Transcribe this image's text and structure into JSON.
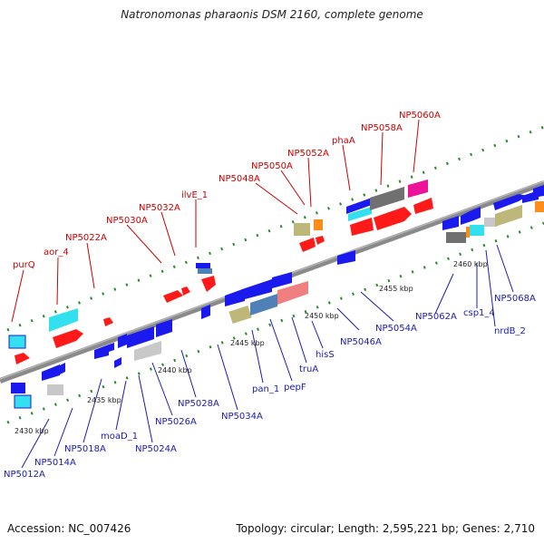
{
  "title": "Natronomonas pharaonis DSM 2160, complete genome",
  "footer": {
    "accession": "Accession: NC_007426",
    "summary": "Topology: circular; Length: 2,595,221 bp; Genes: 2,710"
  },
  "scale_labels": [
    "2430 kbp",
    "2435 kbp",
    "2440 kbp",
    "2445 kbp",
    "2450 kbp",
    "2455 kbp",
    "2460 kbp"
  ],
  "top_labels": [
    "purQ",
    "aor_4",
    "NP5022A",
    "NP5030A",
    "NP5032A",
    "ilvE_1",
    "NP5048A",
    "NP5050A",
    "NP5052A",
    "phaA",
    "NP5058A",
    "NP5060A"
  ],
  "bottom_labels": [
    "NP5012A",
    "NP5014A",
    "NP5018A",
    "moaD_1",
    "NP5024A",
    "NP5026A",
    "NP5028A",
    "NP5034A",
    "pan_1",
    "pepF",
    "truA",
    "hisS",
    "NP5046A",
    "NP5054A",
    "NP5062A",
    "csp1_4",
    "nrdB_2",
    "NP5068A"
  ],
  "colors": {
    "forward_red": "#ff1a1a",
    "reverse_blue": "#1a1aee",
    "cyan": "#33e0f0",
    "gray": "#888888",
    "khaki": "#bdb77a",
    "magenta": "#ee1199",
    "pink": "#f08080",
    "steel": "#4f80b8",
    "orange": "#ff8c1a",
    "lightgray": "#c8c8c8",
    "tick_green": "#2a8a2a",
    "backbone": "#8a8a8a"
  }
}
